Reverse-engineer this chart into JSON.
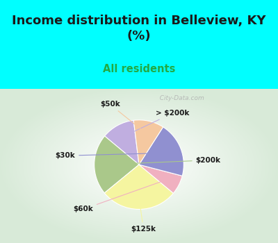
{
  "title": "Income distribution in Belleview, KY\n(%)",
  "subtitle": "All residents",
  "title_color": "#1a1a1a",
  "subtitle_color": "#22aa44",
  "labels": [
    "> $200k",
    "$200k",
    "$125k",
    "$60k",
    "$30k",
    "$50k"
  ],
  "sizes": [
    12,
    22,
    28,
    7,
    20,
    11
  ],
  "colors": [
    "#c0aee0",
    "#aac88a",
    "#f5f5a0",
    "#f0b0c0",
    "#9090d0",
    "#f5c8a0"
  ],
  "background_top": "#00ffff",
  "startangle": 97,
  "watermark": "  City-Data.com"
}
